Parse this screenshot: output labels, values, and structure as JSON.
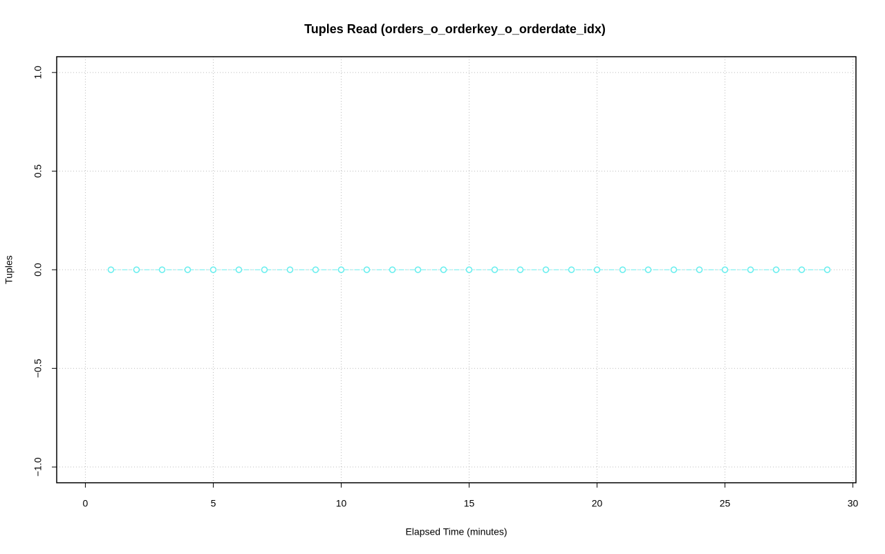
{
  "chart_data": {
    "type": "line",
    "title": "Tuples Read (orders_o_orderkey_o_orderdate_idx)",
    "x_label": "Elapsed Time (minutes)",
    "y_label": "Tuples",
    "x": [
      1,
      2,
      3,
      4,
      5,
      6,
      7,
      8,
      9,
      10,
      11,
      12,
      13,
      14,
      15,
      16,
      17,
      18,
      19,
      20,
      21,
      22,
      23,
      24,
      25,
      26,
      27,
      28,
      29
    ],
    "series": [
      {
        "color": "#66eeee",
        "values": [
          0,
          0,
          0,
          0,
          0,
          0,
          0,
          0,
          0,
          0,
          0,
          0,
          0,
          0,
          0,
          0,
          0,
          0,
          0,
          0,
          0,
          0,
          0,
          0,
          0,
          0,
          0,
          0,
          0
        ]
      }
    ],
    "xlim": [
      -1.12,
      30.12
    ],
    "ylim": [
      -1.08,
      1.08
    ],
    "xticks": [
      0,
      5,
      10,
      15,
      20,
      25,
      30
    ],
    "yticks": [
      {
        "value": -1,
        "label": "−1.0"
      },
      {
        "value": -0.5,
        "label": "−0.5"
      },
      {
        "value": 0,
        "label": "0.0"
      },
      {
        "value": 0.5,
        "label": "0.5"
      },
      {
        "value": 1,
        "label": "1.0"
      }
    ],
    "grid": true
  }
}
